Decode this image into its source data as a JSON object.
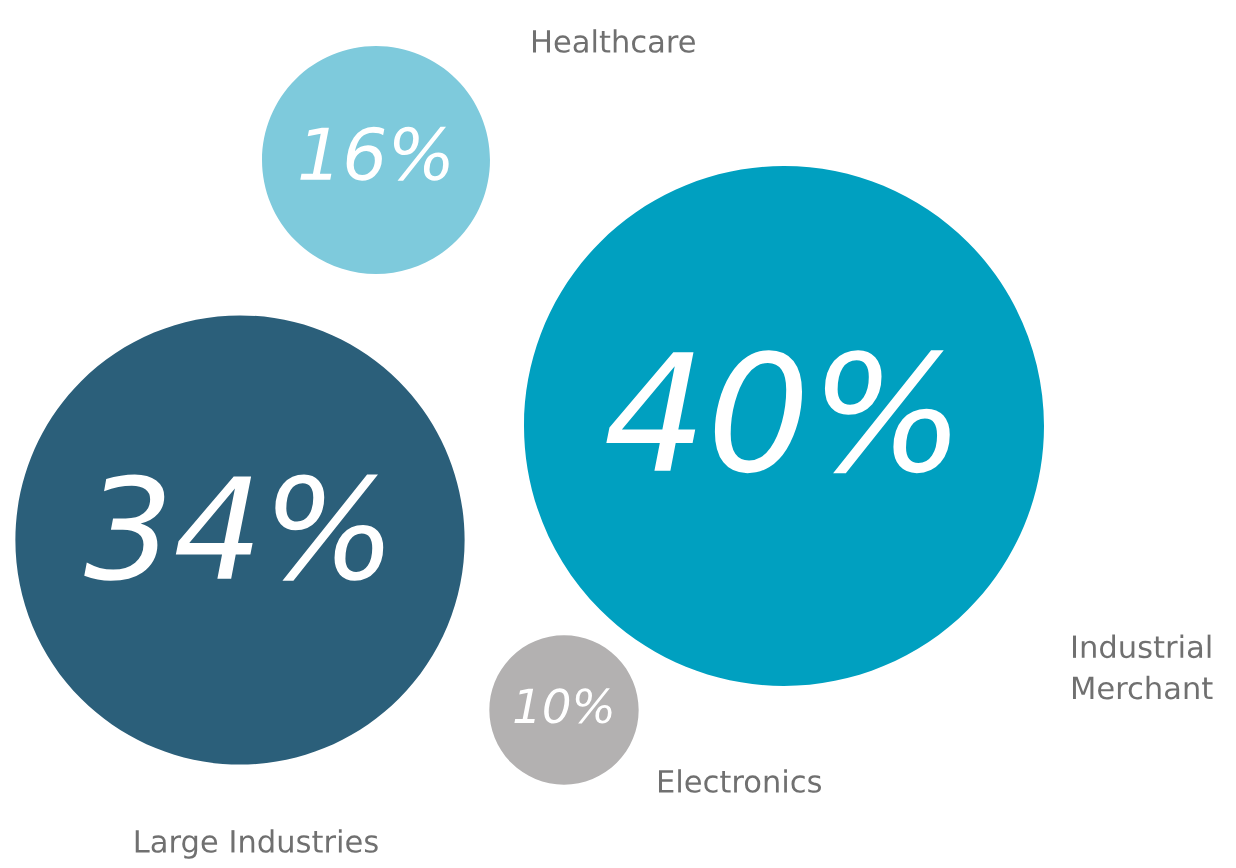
{
  "chart_data": {
    "type": "other",
    "categories": [
      "Healthcare",
      "Industrial\nMerchant",
      "Large Industries",
      "Electronics"
    ],
    "values": [
      16,
      40,
      34,
      10
    ],
    "value_labels": [
      "16%",
      "40%",
      "34%",
      "10%"
    ],
    "colors": [
      "#7ecadc",
      "#00a0c0",
      "#2b5f7a",
      "#b3b1b1"
    ]
  }
}
